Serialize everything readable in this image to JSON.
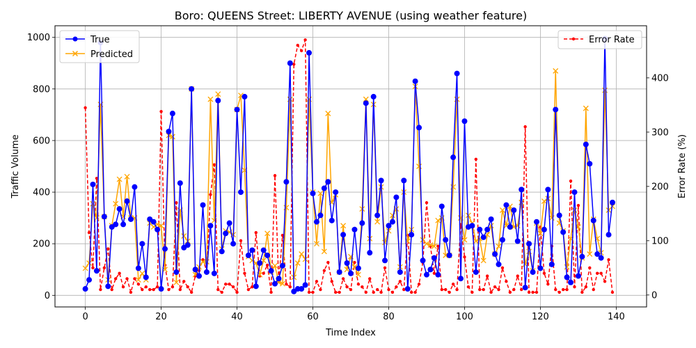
{
  "chart_data": {
    "type": "line",
    "title": "Boro: QUEENS Street: LIBERTY AVENUE (using weather feature)",
    "xlabel": "Time Index",
    "ylabel": "Traffic Volume",
    "y2label": "Error Rate (%)",
    "xlim": [
      -8,
      148
    ],
    "ylim": [
      -45,
      1045
    ],
    "y2lim": [
      -22,
      496
    ],
    "xticks": [
      0,
      20,
      40,
      60,
      80,
      100,
      120,
      140
    ],
    "yticks": [
      0,
      200,
      400,
      600,
      800,
      1000
    ],
    "y2ticks": [
      0,
      100,
      200,
      300,
      400
    ],
    "grid": true,
    "legend_left_position": "top-left",
    "legend_right_position": "top-right",
    "colors": {
      "true": "#0000ff",
      "predicted": "#ffa500",
      "error": "#ff0000"
    },
    "series": [
      {
        "name": "True",
        "axis": "left",
        "style": "solid-circle",
        "values": [
          25,
          60,
          430,
          95,
          980,
          305,
          35,
          265,
          275,
          335,
          275,
          365,
          295,
          420,
          105,
          200,
          70,
          295,
          285,
          255,
          25,
          180,
          635,
          705,
          90,
          435,
          185,
          195,
          800,
          100,
          75,
          350,
          90,
          270,
          85,
          755,
          170,
          240,
          280,
          200,
          720,
          400,
          770,
          155,
          175,
          35,
          125,
          175,
          155,
          95,
          45,
          65,
          115,
          440,
          900,
          15,
          25,
          25,
          40,
          940,
          395,
          285,
          310,
          415,
          440,
          290,
          400,
          90,
          235,
          125,
          85,
          255,
          105,
          280,
          745,
          165,
          770,
          310,
          445,
          135,
          270,
          285,
          380,
          90,
          445,
          25,
          235,
          830,
          650,
          135,
          80,
          100,
          145,
          80,
          345,
          215,
          155,
          535,
          860,
          65,
          675,
          265,
          270,
          90,
          255,
          225,
          255,
          295,
          160,
          120,
          215,
          350,
          265,
          330,
          210,
          410,
          30,
          200,
          90,
          285,
          105,
          255,
          410,
          120,
          720,
          310,
          245,
          70,
          50,
          400,
          75,
          150,
          585,
          510,
          290,
          160,
          145,
          995,
          235,
          360
        ]
      },
      {
        "name": "Predicted",
        "axis": "left",
        "style": "solid-x",
        "values": [
          105,
          125,
          355,
          300,
          740,
          305,
          60,
          270,
          355,
          450,
          305,
          460,
          300,
          300,
          60,
          85,
          60,
          280,
          265,
          275,
          270,
          100,
          620,
          615,
          50,
          330,
          230,
          210,
          800,
          80,
          110,
          130,
          130,
          760,
          290,
          780,
          180,
          250,
          245,
          235,
          720,
          775,
          485,
          150,
          135,
          125,
          80,
          135,
          240,
          90,
          115,
          50,
          45,
          340,
          760,
          70,
          125,
          160,
          140,
          760,
          400,
          200,
          395,
          170,
          705,
          360,
          390,
          90,
          270,
          100,
          150,
          110,
          80,
          335,
          760,
          220,
          740,
          285,
          420,
          205,
          250,
          310,
          335,
          110,
          400,
          210,
          255,
          810,
          500,
          215,
          200,
          195,
          190,
          290,
          300,
          155,
          155,
          420,
          760,
          300,
          215,
          310,
          280,
          210,
          220,
          135,
          235,
          270,
          160,
          190,
          330,
          270,
          345,
          265,
          270,
          360,
          120,
          170,
          95,
          280,
          240,
          365,
          375,
          300,
          870,
          280,
          250,
          110,
          220,
          330,
          265,
          145,
          725,
          160,
          295,
          220,
          165,
          795,
          330,
          345
        ]
      },
      {
        "name": "Error Rate",
        "axis": "right",
        "style": "dashed-dot",
        "values": [
          345,
          115,
          50,
          215,
          10,
          50,
          85,
          10,
          30,
          40,
          15,
          30,
          5,
          30,
          20,
          10,
          15,
          10,
          10,
          15,
          338,
          55,
          10,
          15,
          170,
          10,
          25,
          15,
          5,
          35,
          45,
          65,
          45,
          185,
          240,
          10,
          5,
          20,
          20,
          15,
          5,
          100,
          40,
          10,
          15,
          115,
          35,
          40,
          55,
          5,
          220,
          25,
          110,
          20,
          15,
          425,
          460,
          450,
          470,
          5,
          5,
          25,
          10,
          45,
          60,
          25,
          5,
          5,
          30,
          15,
          10,
          60,
          20,
          15,
          5,
          30,
          5,
          10,
          5,
          50,
          10,
          5,
          15,
          25,
          10,
          110,
          5,
          5,
          20,
          60,
          170,
          90,
          40,
          90,
          10,
          10,
          5,
          20,
          10,
          130,
          70,
          15,
          5,
          250,
          10,
          10,
          35,
          5,
          15,
          10,
          50,
          25,
          5,
          10,
          35,
          10,
          310,
          5,
          5,
          5,
          125,
          40,
          20,
          90,
          10,
          5,
          10,
          10,
          210,
          15,
          165,
          5,
          15,
          50,
          10,
          40,
          40,
          25,
          65,
          5
        ]
      }
    ]
  }
}
